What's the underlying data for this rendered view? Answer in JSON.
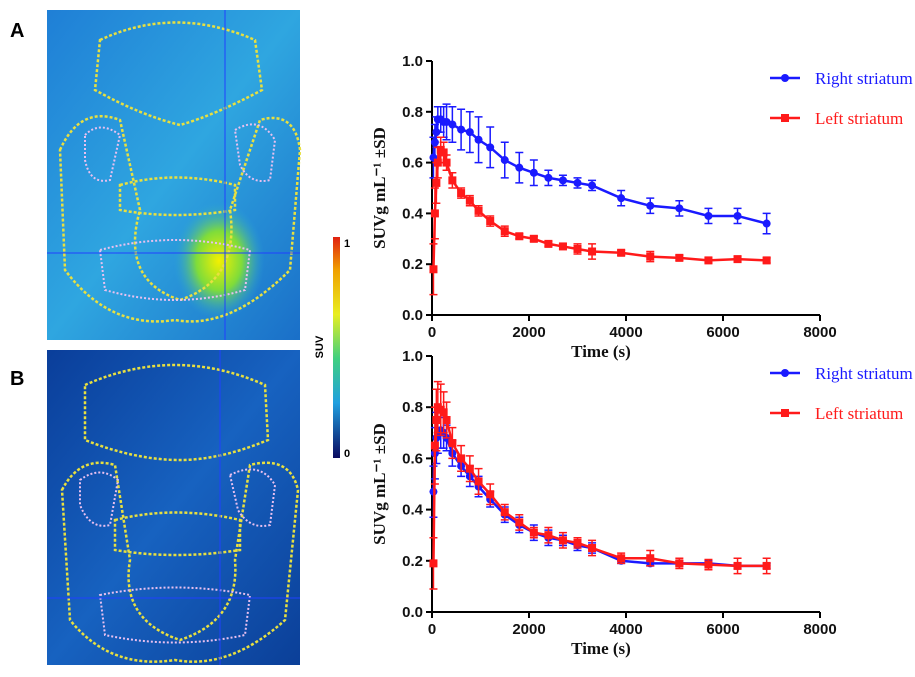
{
  "panels": [
    "A",
    "B"
  ],
  "colorbar": {
    "label": "SUV",
    "ticks": [
      0,
      1
    ]
  },
  "chart_data": [
    {
      "type": "line",
      "xlabel": "Time (s)",
      "ylabel": "SUVg mL⁻¹ ±SD",
      "x": [
        30,
        60,
        90,
        120,
        180,
        240,
        300,
        420,
        600,
        780,
        960,
        1200,
        1500,
        1800,
        2100,
        2400,
        2700,
        3000,
        3300,
        3900,
        4500,
        5100,
        5700,
        6300,
        6900
      ],
      "xlim": [
        0,
        8000
      ],
      "xticks": [
        0,
        2000,
        4000,
        6000,
        8000
      ],
      "ylim": [
        0,
        1
      ],
      "yticks": [
        {
          "value": 0,
          "label": "0.0"
        },
        0.2,
        0.4,
        0.6,
        0.8,
        {
          "value": 1,
          "label": "1.0"
        }
      ],
      "legend": "top-right",
      "series": [
        {
          "name": "Right striatum",
          "color": "#1a1aff",
          "marker": "circle",
          "values": [
            0.62,
            0.68,
            0.72,
            0.77,
            0.77,
            0.76,
            0.76,
            0.75,
            0.73,
            0.72,
            0.69,
            0.66,
            0.61,
            0.58,
            0.56,
            0.54,
            0.53,
            0.52,
            0.51,
            0.46,
            0.43,
            0.42,
            0.39,
            0.39,
            0.36
          ],
          "errors": [
            0.08,
            0.07,
            0.06,
            0.05,
            0.05,
            0.06,
            0.07,
            0.07,
            0.08,
            0.08,
            0.09,
            0.08,
            0.07,
            0.06,
            0.05,
            0.03,
            0.02,
            0.02,
            0.02,
            0.03,
            0.03,
            0.03,
            0.03,
            0.03,
            0.04
          ]
        },
        {
          "name": "Left striatum",
          "color": "#ff1a1a",
          "marker": "square",
          "values": [
            0.18,
            0.4,
            0.52,
            0.6,
            0.65,
            0.64,
            0.6,
            0.53,
            0.48,
            0.45,
            0.41,
            0.37,
            0.33,
            0.31,
            0.3,
            0.28,
            0.27,
            0.26,
            0.25,
            0.245,
            0.23,
            0.225,
            0.215,
            0.22,
            0.215
          ],
          "errors": [
            0.1,
            0.1,
            0.08,
            0.06,
            0.05,
            0.04,
            0.03,
            0.03,
            0.02,
            0.02,
            0.02,
            0.02,
            0.02,
            0.01,
            0.01,
            0.01,
            0.01,
            0.02,
            0.03,
            0.01,
            0.02,
            0.01,
            0.01,
            0.01,
            0.01
          ]
        }
      ]
    },
    {
      "type": "line",
      "xlabel": "Time (s)",
      "ylabel": "SUVg mL⁻¹ ±SD",
      "x": [
        30,
        60,
        90,
        120,
        180,
        240,
        300,
        420,
        600,
        780,
        960,
        1200,
        1500,
        1800,
        2100,
        2400,
        2700,
        3000,
        3300,
        3900,
        4500,
        5100,
        5700,
        6300,
        6900
      ],
      "xlim": [
        0,
        8000
      ],
      "xticks": [
        0,
        2000,
        4000,
        6000,
        8000
      ],
      "ylim": [
        0,
        1
      ],
      "yticks": [
        {
          "value": 0,
          "label": "0.0"
        },
        0.2,
        0.4,
        0.6,
        0.8,
        {
          "value": 1,
          "label": "1.0"
        }
      ],
      "legend": "top-right",
      "series": [
        {
          "name": "Right striatum",
          "color": "#1a1aff",
          "marker": "circle",
          "values": [
            0.47,
            0.62,
            0.68,
            0.7,
            0.71,
            0.7,
            0.68,
            0.62,
            0.57,
            0.53,
            0.49,
            0.44,
            0.38,
            0.34,
            0.31,
            0.29,
            0.28,
            0.26,
            0.25,
            0.2,
            0.19,
            0.19,
            0.19,
            0.18,
            0.18
          ],
          "errors": [
            0.1,
            0.1,
            0.1,
            0.08,
            0.07,
            0.06,
            0.05,
            0.05,
            0.04,
            0.04,
            0.04,
            0.03,
            0.03,
            0.03,
            0.03,
            0.03,
            0.02,
            0.02,
            0.02,
            0.01,
            0.01,
            0.01,
            0.01,
            0.01,
            0.01
          ]
        },
        {
          "name": "Left striatum",
          "color": "#ff1a1a",
          "marker": "square",
          "values": [
            0.19,
            0.65,
            0.75,
            0.8,
            0.79,
            0.78,
            0.75,
            0.66,
            0.6,
            0.56,
            0.51,
            0.46,
            0.39,
            0.35,
            0.31,
            0.3,
            0.28,
            0.27,
            0.25,
            0.21,
            0.21,
            0.19,
            0.185,
            0.18,
            0.18
          ],
          "errors": [
            0.1,
            0.15,
            0.12,
            0.1,
            0.1,
            0.08,
            0.07,
            0.06,
            0.05,
            0.05,
            0.05,
            0.04,
            0.03,
            0.03,
            0.02,
            0.03,
            0.03,
            0.02,
            0.03,
            0.02,
            0.03,
            0.02,
            0.02,
            0.03,
            0.03
          ]
        }
      ]
    }
  ]
}
